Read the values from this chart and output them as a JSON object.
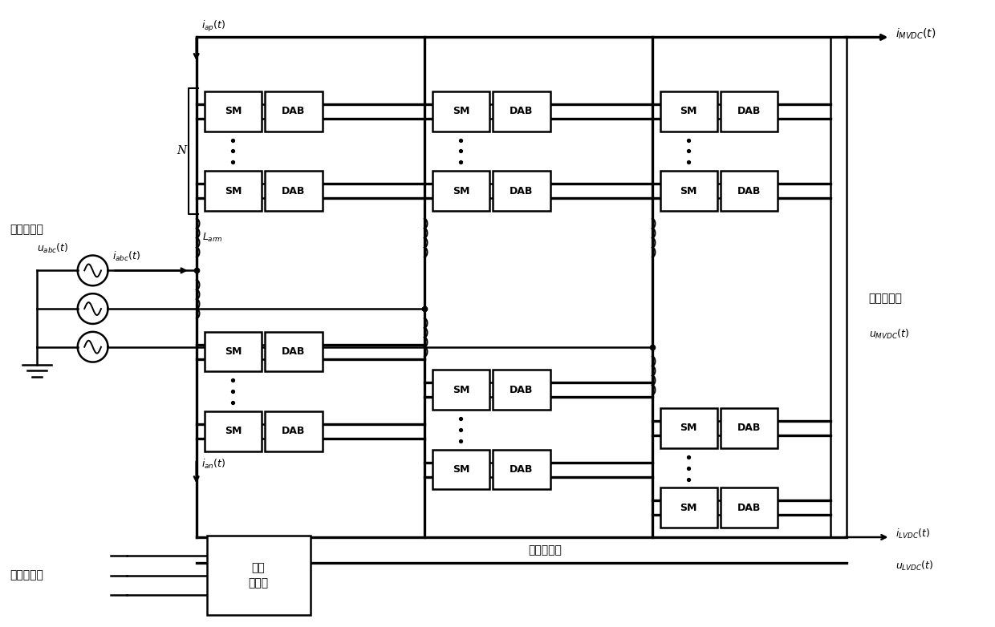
{
  "bg_color": "#ffffff",
  "line_color": "#000000",
  "fig_width": 12.4,
  "fig_height": 7.82,
  "dpi": 100,
  "label_mvac": "中压交流端",
  "label_mvdc": "中压直流端",
  "label_lvac": "低压交流端",
  "label_lvdc": "低压直流端",
  "label_larm": "$L_{arm}$",
  "label_iap": "$i_{ap}(t)$",
  "label_ian": "$i_{an}(t)$",
  "label_iabc": "$i_{abc}(t)$",
  "label_uabc": "$u_{abc}(t)$",
  "label_imvdc": "$i_{MVDC}(t)$",
  "label_umvdc": "$u_{MVDC}(t)$",
  "label_ilvdc": "$i_{LVDC}(t)$",
  "label_ulvdc": "$u_{LVDC}(t)$",
  "label_N": "N",
  "label_SM": "SM",
  "label_DAB": "DAB",
  "label_3ph": "三相\n逆变器"
}
